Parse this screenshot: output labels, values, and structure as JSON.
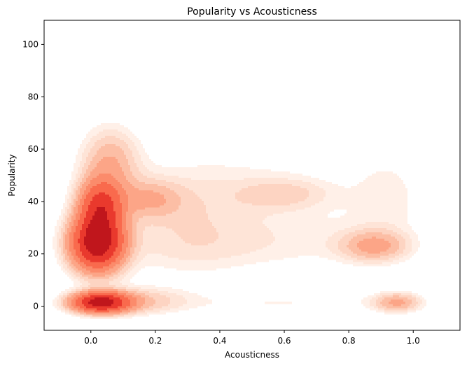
{
  "chart_data": {
    "type": "kde-contour",
    "title": "Popularity vs Acousticness",
    "xlabel": "Acousticness",
    "ylabel": "Popularity",
    "xlim": [
      -0.145,
      1.145
    ],
    "ylim": [
      -9.2,
      109.2
    ],
    "xticks": [
      0.0,
      0.2,
      0.4,
      0.6,
      0.8,
      1.0
    ],
    "xtick_labels": [
      "0.0",
      "0.2",
      "0.4",
      "0.6",
      "0.8",
      "1.0"
    ],
    "yticks": [
      0,
      20,
      40,
      60,
      80,
      100
    ],
    "ytick_labels": [
      "0",
      "20",
      "40",
      "60",
      "80",
      "100"
    ],
    "colormap": "Reds",
    "levels": [
      "#fff0e8",
      "#fee4d7",
      "#fdd4c2",
      "#fcbea5",
      "#fca587",
      "#fb8b6b",
      "#f96a4d",
      "#e9392d",
      "#c0161c"
    ],
    "grid": false,
    "density_components": [
      {
        "x": 0.02,
        "y": 24,
        "sx": 0.055,
        "sy": 7,
        "w": 1.0
      },
      {
        "x": 0.03,
        "y": 38,
        "sx": 0.045,
        "sy": 7,
        "w": 0.65
      },
      {
        "x": 0.03,
        "y": 1.5,
        "sx": 0.06,
        "sy": 2.6,
        "w": 0.95
      },
      {
        "x": 0.06,
        "y": 55,
        "sx": 0.06,
        "sy": 9,
        "w": 0.2
      },
      {
        "x": 0.18,
        "y": 41,
        "sx": 0.07,
        "sy": 5,
        "w": 0.17
      },
      {
        "x": 0.15,
        "y": 2,
        "sx": 0.1,
        "sy": 3.5,
        "w": 0.14
      },
      {
        "x": 0.3,
        "y": 30,
        "sx": 0.15,
        "sy": 13,
        "w": 0.08
      },
      {
        "x": 0.6,
        "y": 43,
        "sx": 0.1,
        "sy": 4,
        "w": 0.1
      },
      {
        "x": 0.45,
        "y": 45,
        "sx": 0.25,
        "sy": 12,
        "w": 0.05
      },
      {
        "x": 0.88,
        "y": 23,
        "sx": 0.07,
        "sy": 4,
        "w": 0.22
      },
      {
        "x": 0.92,
        "y": 42,
        "sx": 0.08,
        "sy": 12,
        "w": 0.06
      },
      {
        "x": 0.95,
        "y": 1.5,
        "sx": 0.05,
        "sy": 2.5,
        "w": 0.22
      },
      {
        "x": 0.6,
        "y": 1.5,
        "sx": 0.25,
        "sy": 3,
        "w": 0.05
      },
      {
        "x": 0.7,
        "y": 26,
        "sx": 0.2,
        "sy": 8,
        "w": 0.04
      },
      {
        "x": 0.4,
        "y": 22,
        "sx": 0.25,
        "sy": 6,
        "w": 0.03
      }
    ]
  }
}
